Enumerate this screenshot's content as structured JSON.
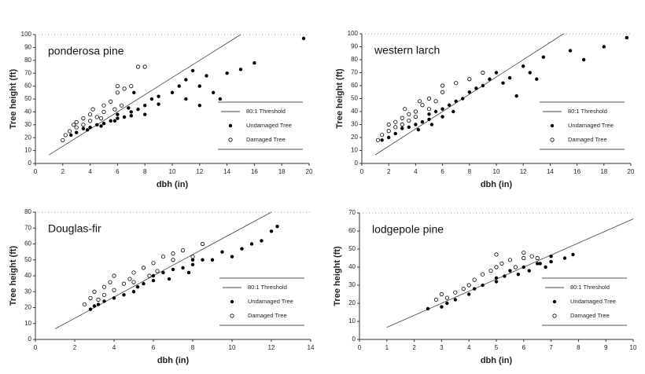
{
  "chart_data": [
    {
      "type": "scatter",
      "title": "ponderosa pine",
      "xlabel": "dbh (in)",
      "ylabel": "Tree height (ft)",
      "xlim": [
        0,
        20
      ],
      "ylim": [
        0,
        100
      ],
      "xticks": [
        0,
        2,
        4,
        6,
        8,
        10,
        12,
        14,
        16,
        18,
        20
      ],
      "yticks": [
        0,
        10,
        20,
        30,
        40,
        50,
        60,
        70,
        80,
        90,
        100
      ],
      "legend": "lower right",
      "series": [
        {
          "name": "80:1 Threshold",
          "style": "line",
          "color": "#444444",
          "x": [
            1,
            15
          ],
          "values": [
            6.67,
            100
          ]
        },
        {
          "name": "Undamaged Tree",
          "style": "filled",
          "color": "#000000",
          "x": [
            3,
            3.5,
            4,
            4.5,
            5,
            5.5,
            6,
            6,
            6.5,
            7,
            7,
            7.5,
            8,
            8,
            8.5,
            9,
            9,
            10,
            10.5,
            11,
            11,
            11.5,
            12,
            12,
            12.5,
            13,
            13.5,
            14,
            15,
            16,
            19.6,
            7.2,
            6.8,
            5.8,
            4.8,
            3.8,
            2.6
          ],
          "values": [
            24,
            27,
            28,
            30,
            31,
            33,
            35,
            38,
            36,
            40,
            37,
            42,
            45,
            38,
            50,
            52,
            46,
            55,
            60,
            65,
            50,
            72,
            60,
            45,
            68,
            55,
            50,
            70,
            73,
            78,
            97,
            55,
            43,
            33,
            29,
            26,
            22
          ]
        },
        {
          "name": "Damaged Tree",
          "style": "open",
          "color": "#000000",
          "x": [
            2,
            2.2,
            2.5,
            3,
            3,
            3.5,
            3.5,
            4,
            4,
            4.5,
            5,
            5,
            5.5,
            6,
            6,
            6.5,
            7,
            7.5,
            8,
            4.2,
            2.8,
            4.8,
            5.8,
            6.3
          ],
          "values": [
            18,
            22,
            25,
            28,
            32,
            30,
            35,
            33,
            38,
            36,
            40,
            45,
            48,
            55,
            60,
            58,
            60,
            75,
            75,
            42,
            30,
            35,
            42,
            45
          ]
        }
      ]
    },
    {
      "type": "scatter",
      "title": "western larch",
      "xlabel": "dbh (in)",
      "ylabel": "Tree height (ft)",
      "xlim": [
        0,
        20
      ],
      "ylim": [
        0,
        100
      ],
      "xticks": [
        0,
        2,
        4,
        6,
        8,
        10,
        12,
        14,
        16,
        18,
        20
      ],
      "yticks": [
        0,
        10,
        20,
        30,
        40,
        50,
        60,
        70,
        80,
        90,
        100
      ],
      "legend": "lower right",
      "series": [
        {
          "name": "80:1 Threshold",
          "style": "line",
          "color": "#444444",
          "x": [
            1,
            15
          ],
          "values": [
            6.67,
            100
          ]
        },
        {
          "name": "Undamaged Tree",
          "style": "filled",
          "color": "#000000",
          "x": [
            1.5,
            2,
            2.5,
            3,
            3.5,
            4,
            4.5,
            5,
            5,
            5.5,
            6,
            6,
            6.5,
            7,
            7.5,
            8,
            8.5,
            9,
            9.5,
            10,
            10.5,
            11,
            11.5,
            12,
            12.5,
            13,
            13.5,
            15.5,
            16.5,
            18,
            19.7,
            4.2,
            5.2,
            6.8
          ],
          "values": [
            18,
            20,
            23,
            27,
            28,
            30,
            32,
            34,
            38,
            40,
            42,
            36,
            45,
            48,
            50,
            55,
            58,
            60,
            65,
            70,
            62,
            66,
            52,
            75,
            70,
            65,
            82,
            87,
            80,
            90,
            97,
            26,
            30,
            40
          ]
        },
        {
          "name": "Damaged Tree",
          "style": "open",
          "color": "#000000",
          "x": [
            1.2,
            1.5,
            2,
            2.5,
            2.5,
            3,
            3,
            3.5,
            3.5,
            4,
            4,
            4.5,
            5,
            5,
            5.5,
            6,
            6,
            7,
            8,
            9,
            2,
            3.2,
            4.3
          ],
          "values": [
            18,
            22,
            25,
            28,
            32,
            30,
            35,
            38,
            33,
            40,
            36,
            45,
            42,
            50,
            48,
            55,
            60,
            62,
            65,
            70,
            30,
            42,
            48
          ]
        }
      ]
    },
    {
      "type": "scatter",
      "title": "Douglas-fir",
      "xlabel": "dbh (in)",
      "ylabel": "Tree height (ft)",
      "xlim": [
        0,
        14
      ],
      "ylim": [
        0,
        80
      ],
      "xticks": [
        0,
        2,
        4,
        6,
        8,
        10,
        12,
        14
      ],
      "yticks": [
        0,
        10,
        20,
        30,
        40,
        50,
        60,
        70,
        80
      ],
      "legend": "lower right",
      "series": [
        {
          "name": "80:1 Threshold",
          "style": "line",
          "color": "#444444",
          "x": [
            1,
            12
          ],
          "values": [
            6.67,
            80
          ]
        },
        {
          "name": "Undamaged Tree",
          "style": "filled",
          "color": "#000000",
          "x": [
            2.8,
            3,
            3.2,
            3.5,
            4,
            4.5,
            5,
            5.2,
            5.5,
            6,
            6,
            6.5,
            7,
            7.5,
            8,
            8,
            8.5,
            9,
            9.5,
            10,
            10.5,
            11,
            11.5,
            12,
            12.3,
            7.8,
            6.8
          ],
          "values": [
            19,
            21,
            22,
            24,
            26,
            28,
            30,
            33,
            35,
            37,
            40,
            42,
            44,
            45,
            47,
            50,
            50,
            50,
            55,
            52,
            57,
            60,
            62,
            68,
            71,
            42,
            38
          ]
        },
        {
          "name": "Damaged Tree",
          "style": "open",
          "color": "#000000",
          "x": [
            2.5,
            2.8,
            3,
            3.2,
            3.5,
            3.5,
            4,
            4,
            4.5,
            4.8,
            5,
            5,
            5.5,
            5.8,
            6,
            6.2,
            6.5,
            7,
            7,
            7.5,
            8,
            8.5,
            3.8
          ],
          "values": [
            22,
            26,
            30,
            25,
            33,
            28,
            40,
            31,
            35,
            38,
            42,
            36,
            45,
            40,
            48,
            43,
            52,
            50,
            54,
            56,
            52,
            60,
            36
          ]
        }
      ]
    },
    {
      "type": "scatter",
      "title": "lodgepole pine",
      "xlabel": "dbh (in)",
      "ylabel": "Tree height (ft)",
      "xlim": [
        0,
        10
      ],
      "ylim": [
        0,
        70
      ],
      "xticks": [
        0,
        1,
        2,
        3,
        4,
        5,
        6,
        7,
        8,
        9,
        10
      ],
      "yticks": [
        0,
        10,
        20,
        30,
        40,
        50,
        60,
        70
      ],
      "legend": "lower right",
      "series": [
        {
          "name": "80:1 Threshold",
          "style": "line",
          "color": "#444444",
          "x": [
            1,
            10
          ],
          "values": [
            6.67,
            66.7
          ]
        },
        {
          "name": "Undamaged Tree",
          "style": "filled",
          "color": "#000000",
          "x": [
            2.5,
            3,
            3.2,
            3.5,
            4,
            4.2,
            4.5,
            5,
            5,
            5.3,
            5.5,
            5.8,
            6,
            6.2,
            6.5,
            6.8,
            7,
            7,
            7.5,
            7.8,
            6.6
          ],
          "values": [
            17,
            18,
            20,
            22,
            25,
            28,
            30,
            32,
            34,
            35,
            38,
            36,
            40,
            38,
            42,
            40,
            43,
            46,
            45,
            47,
            42
          ]
        },
        {
          "name": "Damaged Tree",
          "style": "open",
          "color": "#000000",
          "x": [
            2.8,
            3,
            3.2,
            3.5,
            3.8,
            4,
            4.2,
            4.5,
            4.8,
            5,
            5,
            5.2,
            5.5,
            5.7,
            6,
            6,
            6.3,
            6.5
          ],
          "values": [
            22,
            25,
            23,
            26,
            28,
            30,
            33,
            36,
            38,
            40,
            47,
            42,
            44,
            40,
            45,
            48,
            46,
            45
          ]
        }
      ]
    }
  ]
}
